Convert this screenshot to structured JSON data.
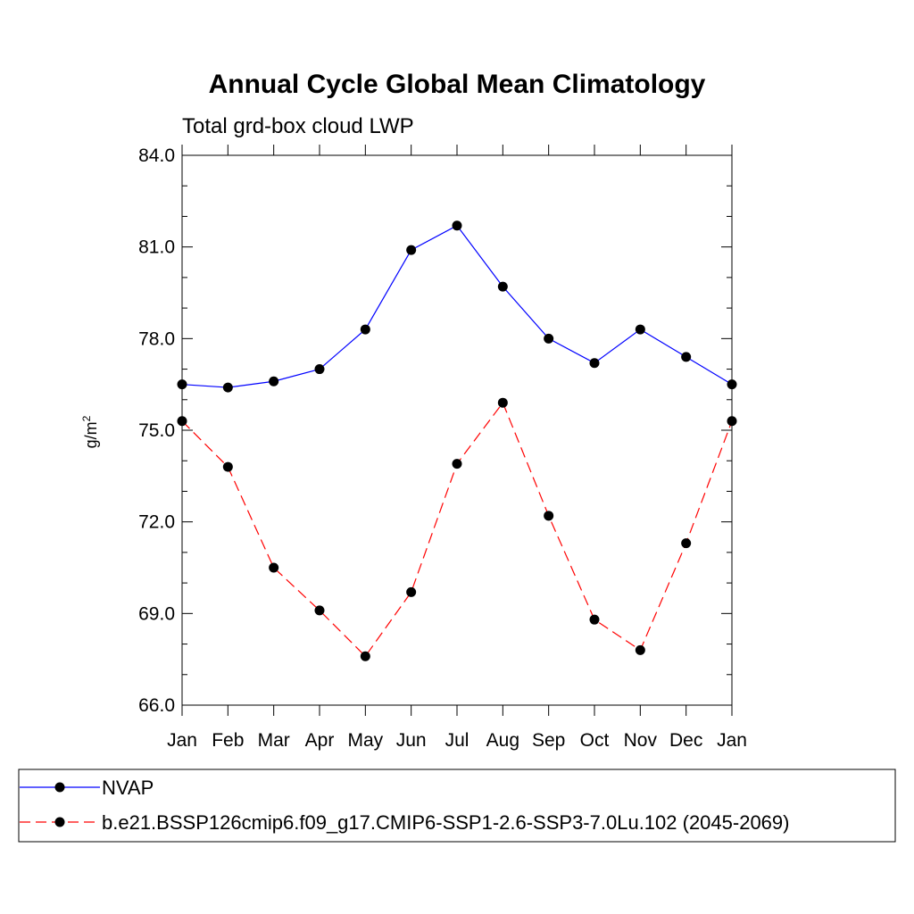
{
  "chart_data": {
    "type": "line",
    "title": "Annual Cycle Global Mean Climatology",
    "subtitle": "Total grd-box cloud LWP",
    "xlabel": "",
    "ylabel": "g/m",
    "ylabel_superscript": "2",
    "categories": [
      "Jan",
      "Feb",
      "Mar",
      "Apr",
      "May",
      "Jun",
      "Jul",
      "Aug",
      "Sep",
      "Oct",
      "Nov",
      "Dec",
      "Jan"
    ],
    "ylim": [
      66.0,
      84.0
    ],
    "yticks": [
      66.0,
      69.0,
      72.0,
      75.0,
      78.0,
      81.0,
      84.0
    ],
    "ytick_labels": [
      "66.0",
      "69.0",
      "72.0",
      "75.0",
      "78.0",
      "81.0",
      "84.0"
    ],
    "series": [
      {
        "name": "NVAP",
        "color": "#0000ff",
        "dash": "solid",
        "values": [
          76.5,
          76.4,
          76.6,
          77.0,
          78.3,
          80.9,
          81.7,
          79.7,
          78.0,
          77.2,
          78.3,
          77.4,
          76.5
        ]
      },
      {
        "name": "b.e21.BSSP126cmip6.f09_g17.CMIP6-SSP1-2.6-SSP3-7.0Lu.102 (2045-2069)",
        "color": "#ff0000",
        "dash": "dashed",
        "values": [
          75.3,
          73.8,
          70.5,
          69.1,
          67.6,
          69.7,
          73.9,
          75.9,
          72.2,
          68.8,
          67.8,
          71.3,
          75.3
        ]
      }
    ],
    "marker_color": "#000000",
    "legend_position": "bottom"
  }
}
